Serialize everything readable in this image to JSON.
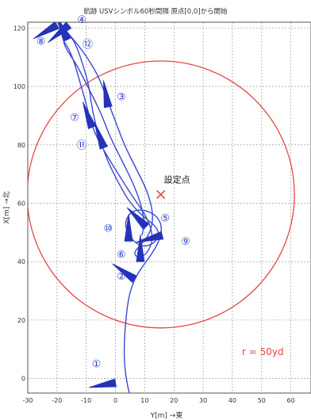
{
  "chart_data": {
    "type": "scatter",
    "title": "航跡 USVシンボル60秒間隔 原点[0,0]から開始",
    "xlabel": "Y[m] →東",
    "ylabel": "X[m] →北",
    "xlim": [
      -30,
      60
    ],
    "ylim": [
      -5,
      122
    ],
    "xticks": [
      -30,
      -20,
      -10,
      0,
      10,
      20,
      30,
      40,
      50,
      60
    ],
    "yticks": [
      0,
      20,
      40,
      60,
      80,
      100,
      120
    ],
    "grid": true,
    "set_point": {
      "label": "設定点",
      "x": 15.5,
      "y": 63
    },
    "circle": {
      "label": "r = 50yd",
      "center_x": 15.5,
      "center_y": 63,
      "radius": 45.7
    },
    "track": {
      "points": [
        [
          5,
          -6
        ],
        [
          4,
          -2
        ],
        [
          3,
          5
        ],
        [
          3,
          12
        ],
        [
          3.5,
          20
        ],
        [
          4.5,
          28
        ],
        [
          6.5,
          34
        ],
        [
          9,
          38
        ],
        [
          12,
          42
        ],
        [
          15,
          47
        ],
        [
          16,
          52
        ],
        [
          14,
          56
        ],
        [
          9,
          58
        ],
        [
          5,
          57
        ],
        [
          3,
          53
        ],
        [
          5,
          48
        ],
        [
          9,
          45
        ],
        [
          13,
          46
        ],
        [
          15,
          49
        ],
        [
          14,
          52
        ],
        [
          10,
          55
        ],
        [
          5,
          60
        ],
        [
          1,
          67
        ],
        [
          -3,
          75
        ],
        [
          -6,
          84
        ],
        [
          -8,
          92
        ],
        [
          -9,
          100
        ],
        [
          -11,
          107
        ],
        [
          -13,
          113
        ],
        [
          -15,
          117
        ],
        [
          -19,
          120
        ],
        [
          -20,
          123
        ],
        [
          -16,
          118
        ],
        [
          -11,
          112
        ],
        [
          -6,
          104
        ],
        [
          -3,
          96
        ],
        [
          0,
          88
        ],
        [
          3,
          80
        ],
        [
          7,
          72
        ],
        [
          11,
          64
        ],
        [
          13,
          56
        ],
        [
          12,
          50
        ],
        [
          9,
          46
        ],
        [
          6,
          43
        ],
        [
          8,
          41
        ],
        [
          11,
          43
        ],
        [
          13,
          48
        ],
        [
          11,
          55
        ],
        [
          6,
          62
        ],
        [
          1,
          70
        ],
        [
          -4,
          78
        ],
        [
          -8,
          86
        ],
        [
          -10,
          94
        ],
        [
          -12,
          101
        ],
        [
          -14,
          108
        ],
        [
          -16,
          113
        ],
        [
          -18,
          116
        ],
        [
          -17,
          113
        ],
        [
          -13,
          107
        ],
        [
          -9,
          99
        ],
        [
          -5,
          91
        ],
        [
          -2,
          83
        ],
        [
          2,
          75
        ],
        [
          6,
          67
        ],
        [
          9,
          59
        ],
        [
          10,
          52
        ],
        [
          8,
          46
        ]
      ]
    },
    "symbols": [
      {
        "number": "①",
        "x": 0,
        "y": -1.5,
        "dir": 170
      },
      {
        "number": "②",
        "x": 6.5,
        "y": 34,
        "dir": 215
      },
      {
        "number": "⑥",
        "x": 8.5,
        "y": 40,
        "dir": 270
      },
      {
        "number": "⑩",
        "x": 4.5,
        "y": 47,
        "dir": 270
      },
      {
        "number": "⑤",
        "x": 10.5,
        "y": 52,
        "dir": 225
      },
      {
        "number": "⑨",
        "x": 16,
        "y": 49,
        "dir": 165
      },
      {
        "number": "⑪",
        "x": -4,
        "y": 79,
        "dir": 250
      },
      {
        "number": "⑦",
        "x": -8,
        "y": 86,
        "dir": 250
      },
      {
        "number": "③",
        "x": -2.5,
        "y": 93,
        "dir": 260
      },
      {
        "number": "④",
        "x": -16,
        "y": 121,
        "dir": 140
      },
      {
        "number": "⑧",
        "x": -20,
        "y": 121,
        "dir": 150
      },
      {
        "number": "⑫",
        "x": -16.5,
        "y": 116,
        "dir": 245
      }
    ],
    "labels": [
      {
        "text": "①",
        "x": -6.5,
        "y": 5
      },
      {
        "text": "②",
        "x": 2,
        "y": 35
      },
      {
        "text": "⑥",
        "x": 2,
        "y": 42.5
      },
      {
        "text": "⑩",
        "x": -2.5,
        "y": 51.5
      },
      {
        "text": "⑤",
        "x": 17,
        "y": 55
      },
      {
        "text": "⑨",
        "x": 24,
        "y": 47
      },
      {
        "text": "⑪",
        "x": -11.5,
        "y": 80
      },
      {
        "text": "⑦",
        "x": -14,
        "y": 89.5
      },
      {
        "text": "③",
        "x": 2,
        "y": 96.5
      },
      {
        "text": "④",
        "x": -11.5,
        "y": 123
      },
      {
        "text": "⑧",
        "x": -25.5,
        "y": 115.5
      },
      {
        "text": "⑫",
        "x": -9.5,
        "y": 114.5
      }
    ]
  },
  "colors": {
    "track": "#3a4ad1",
    "symbol_fill": "#2433b8",
    "circle": "#e84545",
    "set_point": "#e84545",
    "label_text": "#2a3bc4",
    "grid": "#8c8c8c"
  }
}
